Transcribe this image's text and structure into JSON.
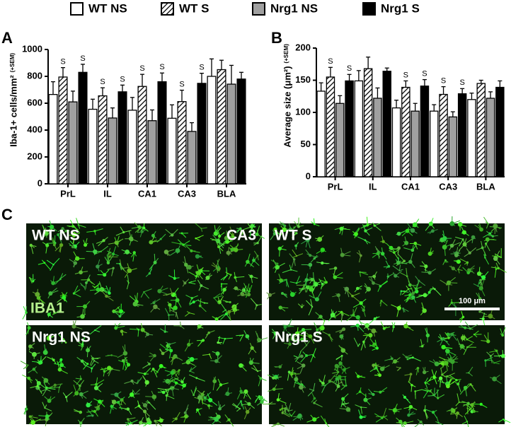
{
  "chart_data": [
    {
      "type": "bar",
      "panel_label": "A",
      "y_label": "Iba-1+ cells/mm²",
      "y_label_note": "(+SEM)",
      "categories": [
        "PrL",
        "IL",
        "CA1",
        "CA3",
        "BLA"
      ],
      "ylim": [
        0,
        1000
      ],
      "yticks": [
        0,
        200,
        400,
        600,
        800,
        1000
      ],
      "series": [
        {
          "name": "WT NS",
          "color": "#ffffff",
          "values": [
            665,
            555,
            548,
            488,
            800
          ],
          "errors": [
            95,
            75,
            95,
            100,
            130
          ],
          "significance": [
            null,
            null,
            null,
            null,
            null
          ]
        },
        {
          "name": "WT S",
          "color": "#ffffff",
          "hatch": true,
          "values": [
            795,
            655,
            725,
            612,
            850
          ],
          "errors": [
            70,
            60,
            90,
            85,
            70
          ],
          "significance": [
            "S",
            "S",
            "S",
            "S",
            null
          ]
        },
        {
          "name": "Nrg1 NS",
          "color": "#a0a0a0",
          "values": [
            610,
            490,
            470,
            390,
            742
          ],
          "errors": [
            80,
            75,
            80,
            65,
            140
          ],
          "significance": [
            null,
            null,
            null,
            null,
            null
          ]
        },
        {
          "name": "Nrg1 S",
          "color": "#000000",
          "values": [
            830,
            685,
            760,
            748,
            780
          ],
          "errors": [
            60,
            50,
            65,
            75,
            50
          ],
          "significance": [
            "S",
            "S",
            "S",
            "S",
            null
          ]
        }
      ]
    },
    {
      "type": "bar",
      "panel_label": "B",
      "y_label": "Average size (μm²)",
      "y_label_note": "(+SEM)",
      "categories": [
        "PrL",
        "IL",
        "CA1",
        "CA3",
        "BLA"
      ],
      "ylim": [
        0,
        200
      ],
      "yticks": [
        0,
        50,
        100,
        150,
        200
      ],
      "series": [
        {
          "name": "WT NS",
          "color": "#ffffff",
          "values": [
            133,
            149,
            107,
            102,
            120
          ],
          "errors": [
            13,
            16,
            12,
            10,
            10
          ],
          "significance": [
            null,
            null,
            null,
            null,
            null
          ]
        },
        {
          "name": "WT S",
          "color": "#ffffff",
          "hatch": true,
          "values": [
            155,
            168,
            139,
            128,
            145
          ],
          "errors": [
            15,
            18,
            10,
            12,
            5
          ],
          "significance": [
            "S",
            null,
            "S",
            "S",
            null
          ]
        },
        {
          "name": "Nrg1 NS",
          "color": "#a0a0a0",
          "values": [
            114,
            122,
            102,
            93,
            122
          ],
          "errors": [
            12,
            16,
            12,
            8,
            10
          ],
          "significance": [
            null,
            null,
            null,
            null,
            null
          ]
        },
        {
          "name": "Nrg1 S",
          "color": "#000000",
          "values": [
            149,
            164,
            141,
            129,
            139
          ],
          "errors": [
            10,
            5,
            10,
            8,
            10
          ],
          "significance": [
            "S",
            null,
            "S",
            "S",
            null
          ]
        }
      ]
    }
  ],
  "panel_c": {
    "panel_label": "C",
    "images": [
      {
        "label": "WT NS",
        "region": "CA3",
        "stain": "IBA1"
      },
      {
        "label": "WT S",
        "scale_bar": "100 μm"
      },
      {
        "label": "Nrg1 NS"
      },
      {
        "label": "Nrg1 S"
      }
    ]
  }
}
